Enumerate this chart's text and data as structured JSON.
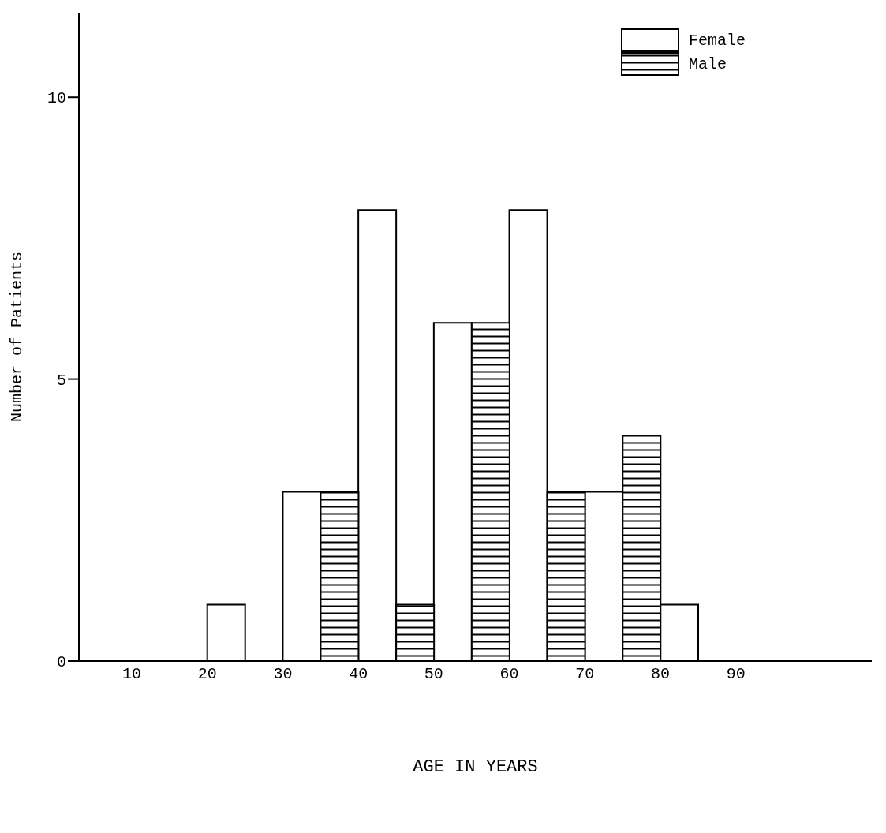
{
  "chart_data": {
    "type": "bar",
    "xlabel": "AGE IN YEARS",
    "ylabel": "Number of Patients",
    "x": [
      25,
      35,
      45,
      55,
      65,
      75,
      85
    ],
    "series": [
      {
        "name": "Female",
        "color": "#000000",
        "values": [
          1,
          3,
          8,
          6,
          8,
          3,
          1
        ]
      },
      {
        "name": "Male",
        "color": "#000000",
        "values": [
          0,
          3,
          1,
          6,
          3,
          4,
          0
        ]
      }
    ],
    "xlim": [
      3,
      108
    ],
    "xticks": [
      10,
      20,
      30,
      40,
      50,
      60,
      70,
      80,
      90
    ],
    "ylim": [
      0,
      11.5
    ],
    "yticks": [
      0,
      5,
      10
    ],
    "legend": "top right"
  }
}
